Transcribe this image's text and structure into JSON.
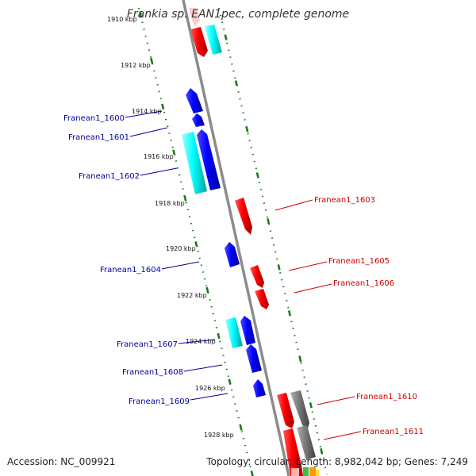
{
  "title": "Frankia sp. EAN1pec, complete genome",
  "footer": {
    "accession": "Accession: NC_009921",
    "summary": "Topology: circular; Length: 8,982,042 bp; Genes: 7,249"
  },
  "colors": {
    "backbone": "#8c8c8c",
    "forward_cds": "#ff0000",
    "reverse_cds": "#0000ff",
    "forward_other": "#00ffff",
    "reverse_other": "#808080",
    "tick": "#1a7a1a",
    "label_forward": "#cc0000",
    "label_reverse": "#000099"
  },
  "ticks": [
    "1910 kbp",
    "1912 kbp",
    "1914 kbp",
    "1916 kbp",
    "1918 kbp",
    "1920 kbp",
    "1922 kbp",
    "1924 kbp",
    "1926 kbp",
    "1928 kbp"
  ],
  "labels": [
    {
      "text": "Franean1_1600",
      "strand": "reverse"
    },
    {
      "text": "Franean1_1601",
      "strand": "reverse"
    },
    {
      "text": "Franean1_1602",
      "strand": "reverse"
    },
    {
      "text": "Franean1_1603",
      "strand": "forward"
    },
    {
      "text": "Franean1_1604",
      "strand": "reverse"
    },
    {
      "text": "Franean1_1605",
      "strand": "forward"
    },
    {
      "text": "Franean1_1606",
      "strand": "forward"
    },
    {
      "text": "Franean1_1607",
      "strand": "reverse"
    },
    {
      "text": "Franean1_1608",
      "strand": "reverse"
    },
    {
      "text": "Franean1_1609",
      "strand": "reverse"
    },
    {
      "text": "Franean1_1610",
      "strand": "forward"
    },
    {
      "text": "Franean1_1611",
      "strand": "forward"
    }
  ]
}
